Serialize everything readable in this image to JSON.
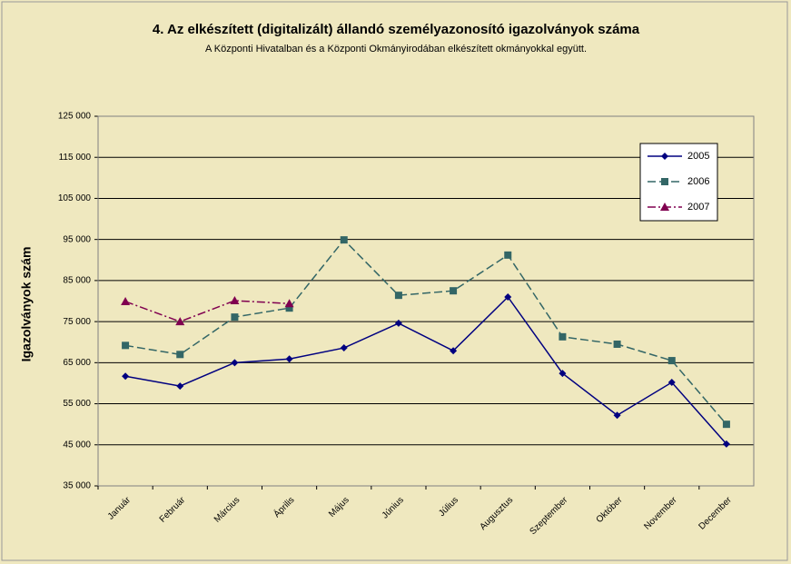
{
  "chart_data": {
    "type": "line",
    "title": "4. Az elkészített (digitalizált) állandó személyazonosító igazolványok száma",
    "subtitle": "A Központi Hivatalban és a Központi Okmányirodában elkészített okmányokkal együtt.",
    "y_label": "Igazolványok szám",
    "categories": [
      "Január",
      "Február",
      "Március",
      "Április",
      "Május",
      "Június",
      "Július",
      "Augusztus",
      "Szeptember",
      "Október",
      "November",
      "December"
    ],
    "series": [
      {
        "name": "2005",
        "color": "#000080",
        "marker": "diamond",
        "dash": "none",
        "values": [
          61700,
          59300,
          65000,
          65900,
          68600,
          74600,
          67900,
          81000,
          62400,
          52200,
          60200,
          45200
        ]
      },
      {
        "name": "2006",
        "color": "#336666",
        "marker": "square",
        "dash": "9 4",
        "values": [
          69200,
          67000,
          76100,
          78300,
          94900,
          81400,
          82500,
          91200,
          71300,
          69500,
          65500,
          50000
        ]
      },
      {
        "name": "2007",
        "color": "#800050",
        "marker": "triangle",
        "dash": "9 3 2 3",
        "values": [
          79900,
          75000,
          80100,
          79400,
          null,
          null,
          null,
          null,
          null,
          null,
          null,
          null
        ]
      }
    ],
    "ylim": [
      35000,
      125000
    ],
    "yticks": [
      {
        "value": 35000,
        "label": "35 000"
      },
      {
        "value": 45000,
        "label": "45 000"
      },
      {
        "value": 55000,
        "label": "55 000"
      },
      {
        "value": 65000,
        "label": "65 000"
      },
      {
        "value": 75000,
        "label": "75 000"
      },
      {
        "value": 85000,
        "label": "85 000"
      },
      {
        "value": 95000,
        "label": "95 000"
      },
      {
        "value": 105000,
        "label": "105 000"
      },
      {
        "value": 115000,
        "label": "115 000"
      },
      {
        "value": 125000,
        "label": "125 000"
      }
    ],
    "grid": true,
    "legend": "upper right"
  }
}
